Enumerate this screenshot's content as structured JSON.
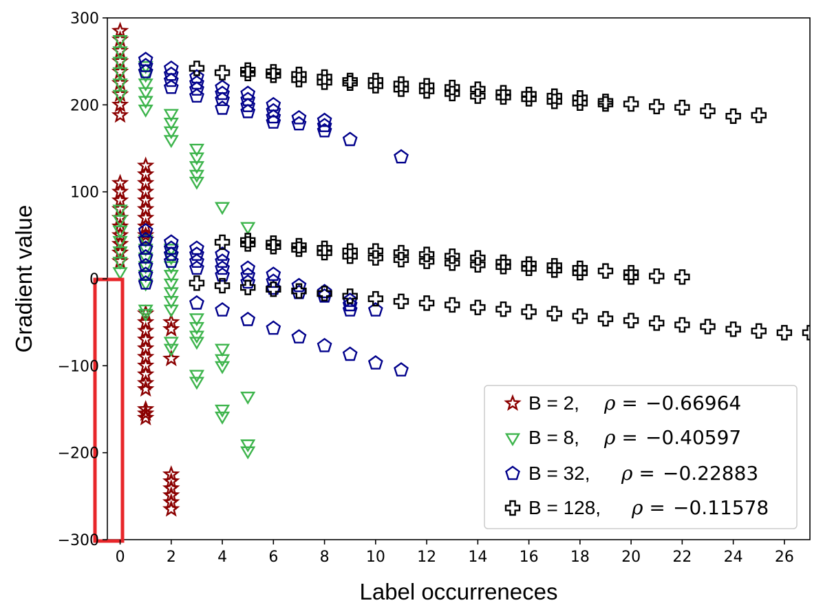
{
  "chart_data": {
    "type": "scatter",
    "title": "",
    "xlabel": "Label occurreneces",
    "ylabel": "Gradient value",
    "xlim": [
      -0.5,
      27
    ],
    "ylim": [
      -300,
      300
    ],
    "xticks": [
      0,
      2,
      4,
      6,
      8,
      10,
      12,
      14,
      16,
      18,
      20,
      22,
      24,
      26
    ],
    "xtick_labels": [
      "0",
      "2",
      "4",
      "6",
      "8",
      "10",
      "12",
      "14",
      "16",
      "18",
      "20",
      "22",
      "24",
      "26"
    ],
    "yticks": [
      -300,
      -200,
      -100,
      0,
      100,
      200,
      300
    ],
    "ytick_labels": [
      "−300",
      "−200",
      "−100",
      "0",
      "100",
      "200",
      "300"
    ],
    "grid": false,
    "legend_position": "bottom-right",
    "highlight_box": {
      "x_range": [
        -0.5,
        0.6
      ],
      "y_range": [
        -300,
        0
      ],
      "color": "#e8262a"
    },
    "series": [
      {
        "name": "B = 2",
        "rho_label": "ρ =",
        "rho_value": "−0.66964",
        "marker": "star",
        "color": "#8b0000",
        "points": [
          [
            0,
            285
          ],
          [
            0,
            275
          ],
          [
            0,
            262
          ],
          [
            0,
            250
          ],
          [
            0,
            238
          ],
          [
            0,
            225
          ],
          [
            0,
            212
          ],
          [
            0,
            200
          ],
          [
            0,
            188
          ],
          [
            0,
            110
          ],
          [
            0,
            100
          ],
          [
            0,
            90
          ],
          [
            0,
            80
          ],
          [
            0,
            70
          ],
          [
            0,
            60
          ],
          [
            0,
            50
          ],
          [
            0,
            40
          ],
          [
            0,
            30
          ],
          [
            0,
            20
          ],
          [
            1,
            130
          ],
          [
            1,
            120
          ],
          [
            1,
            110
          ],
          [
            1,
            100
          ],
          [
            1,
            90
          ],
          [
            1,
            80
          ],
          [
            1,
            70
          ],
          [
            1,
            60
          ],
          [
            1,
            50
          ],
          [
            1,
            45
          ],
          [
            1,
            -40
          ],
          [
            1,
            -50
          ],
          [
            1,
            -60
          ],
          [
            1,
            -70
          ],
          [
            1,
            -80
          ],
          [
            1,
            -90
          ],
          [
            1,
            -100
          ],
          [
            1,
            -110
          ],
          [
            1,
            -120
          ],
          [
            1,
            -127
          ],
          [
            1,
            -150
          ],
          [
            1,
            -155
          ],
          [
            1,
            -160
          ],
          [
            2,
            -50
          ],
          [
            2,
            -58
          ],
          [
            2,
            -92
          ],
          [
            2,
            -225
          ],
          [
            2,
            -233
          ],
          [
            2,
            -241
          ],
          [
            2,
            -249
          ],
          [
            2,
            -257
          ],
          [
            2,
            -265
          ]
        ]
      },
      {
        "name": "B = 8",
        "rho_label": "ρ =",
        "rho_value": "−0.40597",
        "marker": "triangle-down",
        "color": "#3cb44b",
        "points": [
          [
            0,
            275
          ],
          [
            0,
            262
          ],
          [
            0,
            250
          ],
          [
            0,
            238
          ],
          [
            0,
            225
          ],
          [
            0,
            212
          ],
          [
            0,
            80
          ],
          [
            0,
            68
          ],
          [
            0,
            56
          ],
          [
            0,
            44
          ],
          [
            0,
            32
          ],
          [
            0,
            20
          ],
          [
            0,
            8
          ],
          [
            1,
            245
          ],
          [
            1,
            235
          ],
          [
            1,
            225
          ],
          [
            1,
            215
          ],
          [
            1,
            205
          ],
          [
            1,
            195
          ],
          [
            1,
            45
          ],
          [
            1,
            35
          ],
          [
            1,
            25
          ],
          [
            1,
            15
          ],
          [
            1,
            5
          ],
          [
            1,
            -5
          ],
          [
            1,
            -35
          ],
          [
            1,
            -40
          ],
          [
            2,
            190
          ],
          [
            2,
            180
          ],
          [
            2,
            170
          ],
          [
            2,
            160
          ],
          [
            2,
            35
          ],
          [
            2,
            25
          ],
          [
            2,
            15
          ],
          [
            2,
            5
          ],
          [
            2,
            -5
          ],
          [
            2,
            -15
          ],
          [
            2,
            -25
          ],
          [
            2,
            -35
          ],
          [
            2,
            -72
          ],
          [
            2,
            -80
          ],
          [
            3,
            150
          ],
          [
            3,
            140
          ],
          [
            3,
            130
          ],
          [
            3,
            120
          ],
          [
            3,
            112
          ],
          [
            3,
            -45
          ],
          [
            3,
            -55
          ],
          [
            3,
            -65
          ],
          [
            3,
            -72
          ],
          [
            3,
            -110
          ],
          [
            3,
            -118
          ],
          [
            4,
            83
          ],
          [
            4,
            -80
          ],
          [
            4,
            -92
          ],
          [
            4,
            -100
          ],
          [
            4,
            -150
          ],
          [
            4,
            -158
          ],
          [
            5,
            60
          ],
          [
            5,
            -135
          ],
          [
            5,
            -190
          ],
          [
            5,
            -198
          ]
        ]
      },
      {
        "name": "B = 32",
        "rho_label": "ρ =",
        "rho_value": "−0.22883",
        "marker": "pentagon",
        "color": "#00008b",
        "points": [
          [
            1,
            252
          ],
          [
            1,
            245
          ],
          [
            1,
            238
          ],
          [
            1,
            55
          ],
          [
            1,
            45
          ],
          [
            1,
            35
          ],
          [
            1,
            25
          ],
          [
            1,
            15
          ],
          [
            1,
            5
          ],
          [
            1,
            -5
          ],
          [
            2,
            242
          ],
          [
            2,
            235
          ],
          [
            2,
            228
          ],
          [
            2,
            220
          ],
          [
            2,
            42
          ],
          [
            2,
            35
          ],
          [
            2,
            28
          ],
          [
            2,
            20
          ],
          [
            3,
            232
          ],
          [
            3,
            225
          ],
          [
            3,
            218
          ],
          [
            3,
            210
          ],
          [
            3,
            35
          ],
          [
            3,
            28
          ],
          [
            3,
            20
          ],
          [
            3,
            12
          ],
          [
            3,
            -28
          ],
          [
            4,
            220
          ],
          [
            4,
            213
          ],
          [
            4,
            206
          ],
          [
            4,
            196
          ],
          [
            4,
            28
          ],
          [
            4,
            20
          ],
          [
            4,
            12
          ],
          [
            4,
            4
          ],
          [
            4,
            -36
          ],
          [
            5,
            213
          ],
          [
            5,
            206
          ],
          [
            5,
            199
          ],
          [
            5,
            192
          ],
          [
            5,
            12
          ],
          [
            5,
            4
          ],
          [
            5,
            -4
          ],
          [
            5,
            -47
          ],
          [
            6,
            200
          ],
          [
            6,
            193
          ],
          [
            6,
            186
          ],
          [
            6,
            180
          ],
          [
            6,
            5
          ],
          [
            6,
            -3
          ],
          [
            6,
            -11
          ],
          [
            6,
            -57
          ],
          [
            7,
            185
          ],
          [
            7,
            178
          ],
          [
            7,
            -8
          ],
          [
            7,
            -16
          ],
          [
            7,
            -67
          ],
          [
            8,
            182
          ],
          [
            8,
            176
          ],
          [
            8,
            170
          ],
          [
            8,
            -15
          ],
          [
            8,
            -20
          ],
          [
            8,
            -77
          ],
          [
            9,
            160
          ],
          [
            9,
            -25
          ],
          [
            9,
            -30
          ],
          [
            9,
            -36
          ],
          [
            9,
            -87
          ],
          [
            10,
            -36
          ],
          [
            10,
            -97
          ],
          [
            11,
            140
          ],
          [
            11,
            -105
          ]
        ]
      },
      {
        "name": "B = 128",
        "rho_label": "ρ =",
        "rho_value": "−0.11578",
        "marker": "plus",
        "color": "#000000",
        "points": [
          [
            3,
            242
          ],
          [
            3,
            -5
          ],
          [
            4,
            237
          ],
          [
            4,
            42
          ],
          [
            4,
            -8
          ],
          [
            5,
            240
          ],
          [
            5,
            236
          ],
          [
            5,
            44
          ],
          [
            5,
            40
          ],
          [
            5,
            -10
          ],
          [
            6,
            238
          ],
          [
            6,
            234
          ],
          [
            6,
            41
          ],
          [
            6,
            37
          ],
          [
            6,
            -12
          ],
          [
            7,
            235
          ],
          [
            7,
            229
          ],
          [
            7,
            38
          ],
          [
            7,
            34
          ],
          [
            7,
            -14
          ],
          [
            8,
            232
          ],
          [
            8,
            226
          ],
          [
            8,
            35
          ],
          [
            8,
            30
          ],
          [
            8,
            -17
          ],
          [
            9,
            228
          ],
          [
            9,
            225
          ],
          [
            9,
            32
          ],
          [
            9,
            26
          ],
          [
            9,
            -20
          ],
          [
            10,
            228
          ],
          [
            10,
            222
          ],
          [
            10,
            32
          ],
          [
            10,
            24
          ],
          [
            10,
            -23
          ],
          [
            11,
            224
          ],
          [
            11,
            218
          ],
          [
            11,
            30
          ],
          [
            11,
            22
          ],
          [
            11,
            -26
          ],
          [
            12,
            222
          ],
          [
            12,
            216
          ],
          [
            12,
            28
          ],
          [
            12,
            20
          ],
          [
            12,
            -28
          ],
          [
            13,
            220
          ],
          [
            13,
            213
          ],
          [
            13,
            26
          ],
          [
            13,
            18
          ],
          [
            13,
            -30
          ],
          [
            14,
            218
          ],
          [
            14,
            210
          ],
          [
            14,
            24
          ],
          [
            14,
            16
          ],
          [
            14,
            -33
          ],
          [
            15,
            214
          ],
          [
            15,
            209
          ],
          [
            15,
            19
          ],
          [
            15,
            14
          ],
          [
            15,
            -35
          ],
          [
            16,
            212
          ],
          [
            16,
            207
          ],
          [
            16,
            17
          ],
          [
            16,
            12
          ],
          [
            16,
            -38
          ],
          [
            17,
            210
          ],
          [
            17,
            204
          ],
          [
            17,
            15
          ],
          [
            17,
            10
          ],
          [
            17,
            -40
          ],
          [
            18,
            208
          ],
          [
            18,
            202
          ],
          [
            18,
            12
          ],
          [
            18,
            7
          ],
          [
            18,
            -43
          ],
          [
            19,
            204
          ],
          [
            19,
            201
          ],
          [
            19,
            9
          ],
          [
            19,
            -46
          ],
          [
            20,
            201
          ],
          [
            20,
            7
          ],
          [
            20,
            2
          ],
          [
            20,
            -48
          ],
          [
            21,
            198
          ],
          [
            21,
            3
          ],
          [
            21,
            -51
          ],
          [
            22,
            197
          ],
          [
            22,
            2
          ],
          [
            22,
            -53
          ],
          [
            23,
            193
          ],
          [
            23,
            -55
          ],
          [
            24,
            187
          ],
          [
            24,
            -58
          ],
          [
            25,
            188
          ],
          [
            25,
            -60
          ],
          [
            26,
            -62
          ],
          [
            27,
            -62
          ]
        ]
      }
    ]
  }
}
